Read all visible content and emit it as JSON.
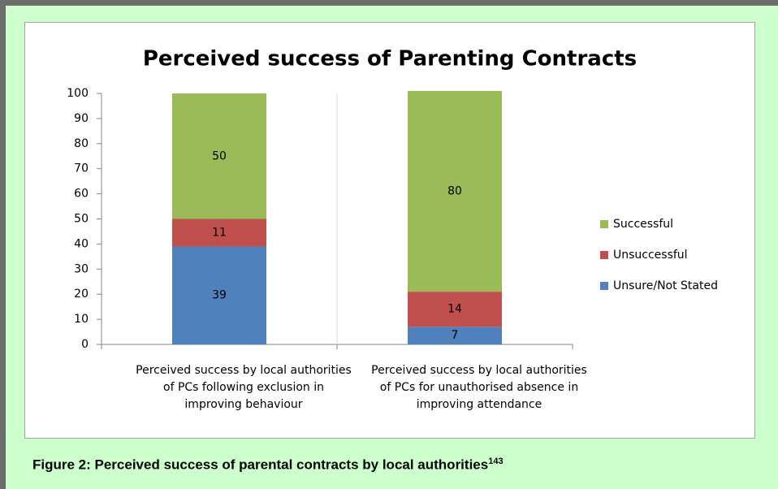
{
  "chart_data": {
    "type": "stacked_bar",
    "title": "Perceived success of Parenting Contracts",
    "categories": [
      "Perceived success by local authorities of PCs following exclusion in improving behaviour",
      "Perceived success by local authorities of PCs for unauthorised absence in improving attendance"
    ],
    "series": [
      {
        "name": "Unsure/Not Stated",
        "color": "#4f81bd",
        "values": [
          39,
          7
        ]
      },
      {
        "name": "Unsuccessful",
        "color": "#c0504d",
        "values": [
          11,
          14
        ]
      },
      {
        "name": "Successful",
        "color": "#9bbb59",
        "values": [
          50,
          80
        ]
      }
    ],
    "ylim": [
      0,
      100
    ],
    "yticks": [
      0,
      10,
      20,
      30,
      40,
      50,
      60,
      70,
      80,
      90,
      100
    ],
    "legend": "right"
  },
  "caption": {
    "text": "Figure 2: Perceived success of parental contracts by local authorities",
    "superscript": "143"
  }
}
